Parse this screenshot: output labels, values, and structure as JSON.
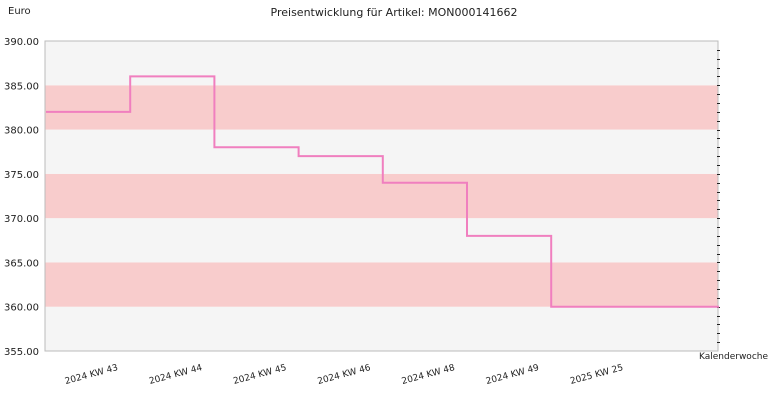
{
  "chart_data": {
    "type": "line",
    "step": true,
    "title": "Preisentwicklung für Artikel: MON000141662",
    "ylabel": "Euro",
    "xlabel": "Kalenderwoche",
    "categories": [
      "2024 KW 43",
      "2024 KW 44",
      "2024 KW 45",
      "2024 KW 46",
      "2024 KW 48",
      "2024 KW 49",
      "2025 KW 25"
    ],
    "values": [
      382,
      386,
      378,
      377,
      374,
      368,
      360
    ],
    "ylim": [
      355,
      390
    ],
    "yticks": [
      355,
      360,
      365,
      370,
      375,
      380,
      385,
      390
    ],
    "ytick_labels": [
      "355.00",
      "360.00",
      "365.00",
      "370.00",
      "375.00",
      "380.00",
      "385.00",
      "390.00"
    ],
    "grid": false,
    "colors": {
      "line": "#f07fbf",
      "band_shaded": "#f8cccc",
      "band_light": "#f5f5f5",
      "axis": "#bbbbbb"
    }
  }
}
